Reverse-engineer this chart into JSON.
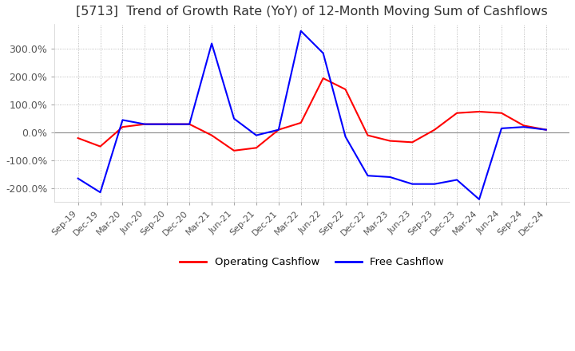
{
  "title": "[5713]  Trend of Growth Rate (YoY) of 12-Month Moving Sum of Cashflows",
  "title_fontsize": 11.5,
  "title_color": "#333333",
  "ylim": [
    -250,
    390
  ],
  "yticks": [
    -200,
    -100,
    0,
    100,
    200,
    300
  ],
  "ytick_labels": [
    "-200.0%",
    "-100.0%",
    "0.0%",
    "100.0%",
    "200.0%",
    "300.0%"
  ],
  "background_color": "#ffffff",
  "plot_background": "#ffffff",
  "grid_color": "#aaaaaa",
  "legend_labels": [
    "Operating Cashflow",
    "Free Cashflow"
  ],
  "legend_colors": [
    "#ff0000",
    "#0000ff"
  ],
  "x_labels": [
    "Sep-19",
    "Dec-19",
    "Mar-20",
    "Jun-20",
    "Sep-20",
    "Dec-20",
    "Mar-21",
    "Jun-21",
    "Sep-21",
    "Dec-21",
    "Mar-22",
    "Jun-22",
    "Sep-22",
    "Dec-22",
    "Mar-23",
    "Jun-23",
    "Sep-23",
    "Dec-23",
    "Mar-24",
    "Jun-24",
    "Sep-24",
    "Dec-24"
  ],
  "operating_cashflow": [
    -20,
    -50,
    20,
    30,
    30,
    30,
    -10,
    -65,
    -55,
    10,
    35,
    195,
    155,
    -10,
    -30,
    -35,
    10,
    70,
    75,
    70,
    25,
    10
  ],
  "free_cashflow": [
    -165,
    -215,
    45,
    30,
    30,
    30,
    320,
    50,
    -10,
    10,
    365,
    285,
    -15,
    -155,
    -160,
    -185,
    -185,
    -170,
    -240,
    15,
    20,
    10
  ]
}
